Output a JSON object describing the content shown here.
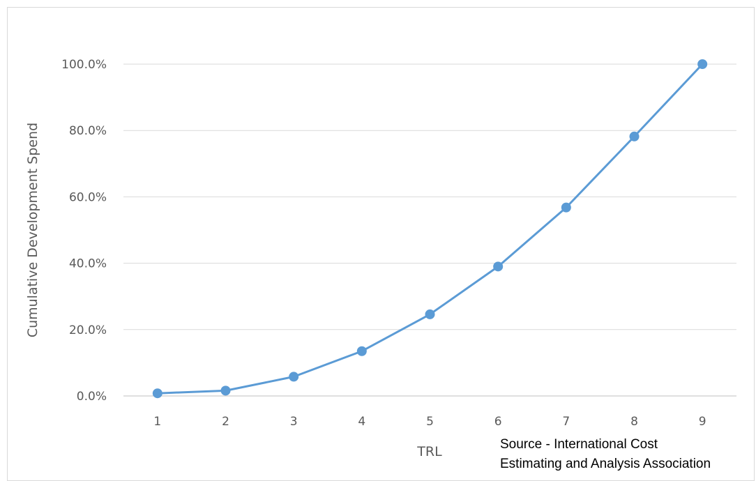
{
  "chart_data": {
    "type": "line",
    "title": "",
    "xlabel": "TRL",
    "ylabel": "Cumulative Development Spend",
    "categories": [
      "1",
      "2",
      "3",
      "4",
      "5",
      "6",
      "7",
      "8",
      "9"
    ],
    "series": [
      {
        "values": [
          0.8,
          1.6,
          5.8,
          13.5,
          24.6,
          39.0,
          56.8,
          78.2,
          100.0
        ],
        "color": "#5b9bd5"
      }
    ],
    "ylim": [
      0,
      100
    ],
    "yticks": [
      "0.0%",
      "20.0%",
      "40.0%",
      "60.0%",
      "80.0%",
      "100.0%"
    ],
    "grid": true,
    "legend": "none"
  },
  "source_note": {
    "line1": "Source - International Cost",
    "line2": "Estimating and Analysis Association"
  }
}
